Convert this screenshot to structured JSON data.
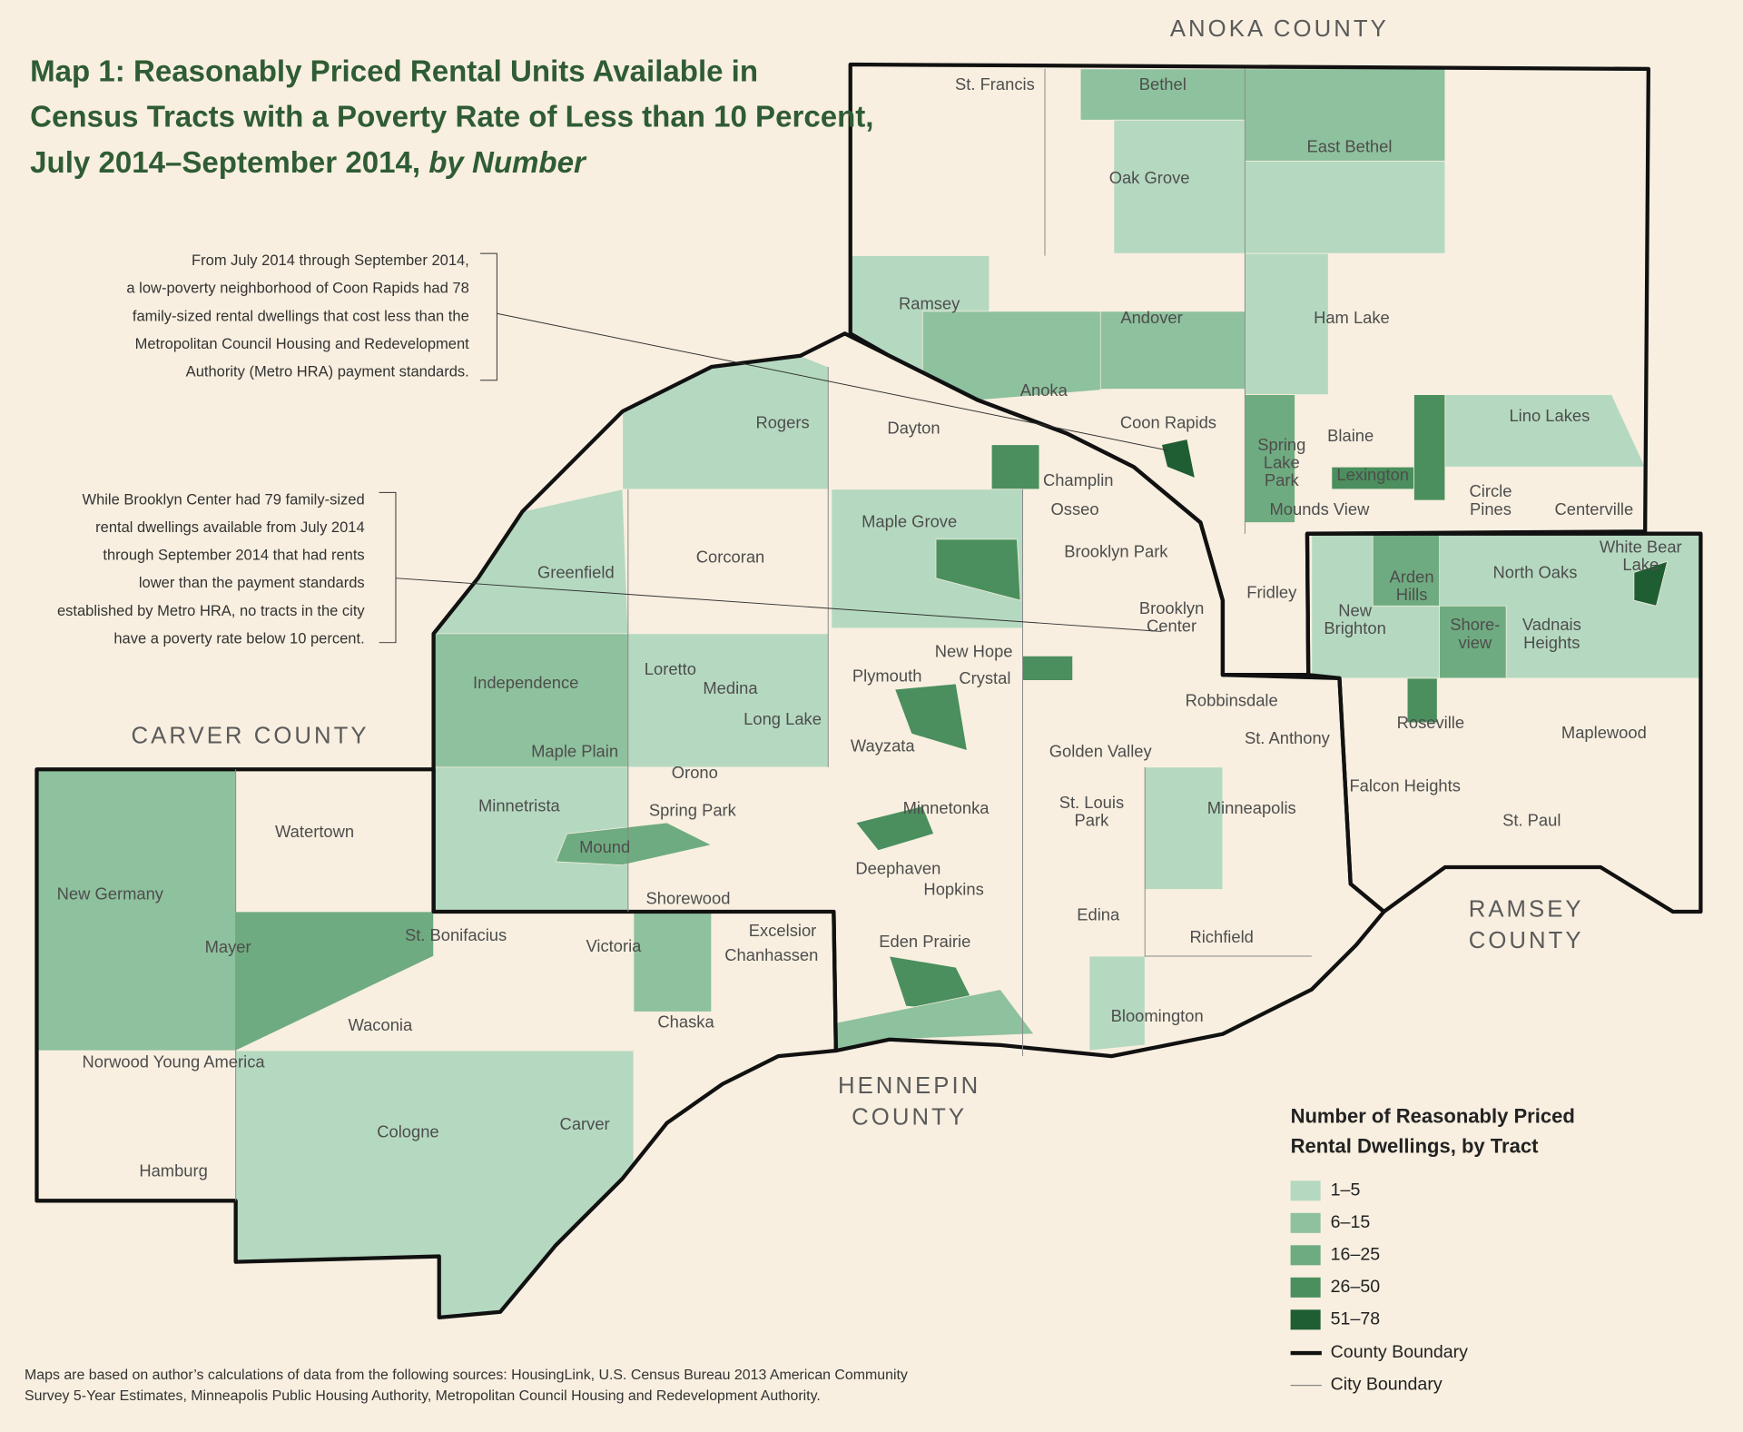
{
  "title": {
    "lines": [
      "Map 1: Reasonably Priced Rental Units Available in",
      "Census Tracts with a Poverty Rate of Less than 10 Percent,",
      "July 2014–September 2014, "
    ],
    "emphasis": "by Number"
  },
  "annotations": [
    [
      "From July 2014 through September 2014,",
      "a low-poverty neighborhood of Coon Rapids had 78",
      "family-sized rental dwellings that cost less than the",
      "Metropolitan Council Housing and Redevelopment",
      "Authority (Metro HRA) payment standards."
    ],
    [
      "While Brooklyn Center had 79 family-sized",
      "rental dwellings available from July 2014",
      "through September 2014 that had rents",
      "lower than the payment standards",
      "established by Metro HRA, no tracts in the city",
      "have a poverty rate below 10 percent."
    ]
  ],
  "counties": [
    [
      "ANOKA COUNTY"
    ],
    [
      "CARVER COUNTY"
    ],
    [
      "RAMSEY",
      "COUNTY"
    ],
    [
      "HENNEPIN",
      "COUNTY"
    ]
  ],
  "places": [
    [
      "St. Francis"
    ],
    [
      "Bethel"
    ],
    [
      "East Bethel"
    ],
    [
      "Oak Grove"
    ],
    [
      "Ramsey"
    ],
    [
      "Andover"
    ],
    [
      "Ham Lake"
    ],
    [
      "Anoka"
    ],
    [
      "Coon Rapids"
    ],
    [
      "Rogers"
    ],
    [
      "Dayton"
    ],
    [
      "Blaine"
    ],
    [
      "Lino Lakes"
    ],
    [
      "Spring",
      "Lake",
      "Park"
    ],
    [
      "Champlin"
    ],
    [
      "Lexington"
    ],
    [
      "Circle",
      "Pines"
    ],
    [
      "Centerville"
    ],
    [
      "Mounds View"
    ],
    [
      "Osseo"
    ],
    [
      "Maple Grove"
    ],
    [
      "Brooklyn Park"
    ],
    [
      "White Bear",
      "Lake"
    ],
    [
      "Greenfield"
    ],
    [
      "Corcoran"
    ],
    [
      "North Oaks"
    ],
    [
      "Arden",
      "Hills"
    ],
    [
      "Fridley"
    ],
    [
      "Brooklyn",
      "Center"
    ],
    [
      "New",
      "Brighton"
    ],
    [
      "Shore-",
      "view"
    ],
    [
      "Vadnais",
      "Heights"
    ],
    [
      "New Hope"
    ],
    [
      "Loretto"
    ],
    [
      "Crystal"
    ],
    [
      "Plymouth"
    ],
    [
      "Independence"
    ],
    [
      "Medina"
    ],
    [
      "Robbinsdale"
    ],
    [
      "Long Lake"
    ],
    [
      "Roseville"
    ],
    [
      "St. Anthony"
    ],
    [
      "Maplewood"
    ],
    [
      "Wayzata"
    ],
    [
      "Golden Valley"
    ],
    [
      "Maple Plain"
    ],
    [
      "Orono"
    ],
    [
      "Falcon Heights"
    ],
    [
      "Watertown"
    ],
    [
      "Minnetrista"
    ],
    [
      "Minnetonka"
    ],
    [
      "Minneapolis"
    ],
    [
      "St. Louis",
      "Park"
    ],
    [
      "Spring Park"
    ],
    [
      "St. Paul"
    ],
    [
      "Mound"
    ],
    [
      "Deephaven"
    ],
    [
      "New Germany"
    ],
    [
      "Shorewood"
    ],
    [
      "Hopkins"
    ],
    [
      "Edina"
    ],
    [
      "Excelsior"
    ],
    [
      "St. Bonifacius"
    ],
    [
      "Richfield"
    ],
    [
      "Mayer"
    ],
    [
      "Victoria"
    ],
    [
      "Eden Prairie"
    ],
    [
      "Chanhassen"
    ],
    [
      "Waconia"
    ],
    [
      "Chaska"
    ],
    [
      "Bloomington"
    ],
    [
      "Norwood Young America"
    ],
    [
      "Carver"
    ],
    [
      "Cologne"
    ],
    [
      "Hamburg"
    ]
  ],
  "legend": {
    "title": [
      "Number of Reasonably Priced",
      "Rental Dwellings, by Tract"
    ],
    "items": [
      {
        "label": "1–5",
        "color": "#b5d9c0"
      },
      {
        "label": "6–15",
        "color": "#8ec19d"
      },
      {
        "label": "16–25",
        "color": "#6fab80"
      },
      {
        "label": "26–50",
        "color": "#4a8f5d"
      },
      {
        "label": "51–78",
        "color": "#1f5e32"
      }
    ],
    "lines": [
      "County Boundary",
      "City Boundary"
    ]
  },
  "footnote": [
    "Maps are based on author’s calculations of data from the following sources: HousingLink, U.S. Census Bureau 2013 American Community",
    "Survey 5-Year Estimates, Minneapolis Public Housing Authority, Metropolitan Council Housing and Redevelopment Authority."
  ]
}
